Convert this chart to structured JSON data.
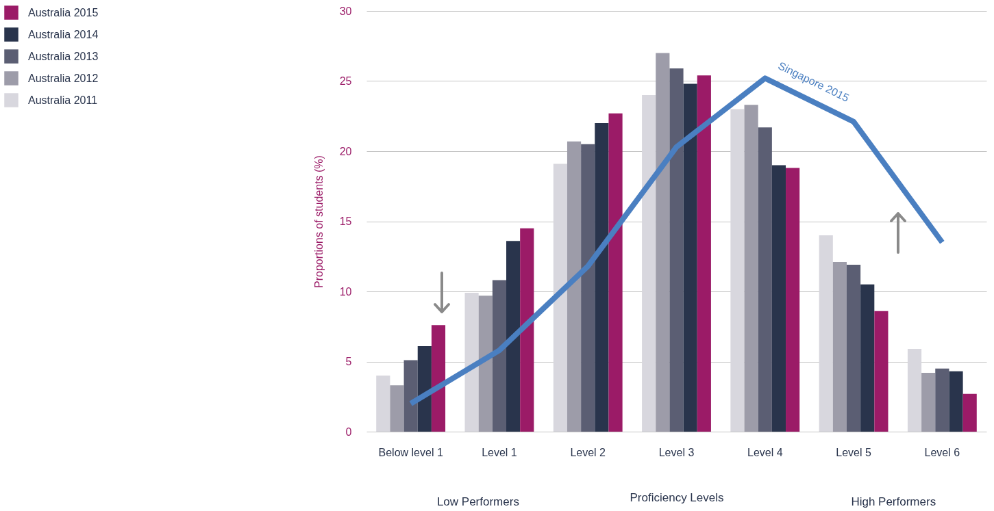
{
  "chart_data": {
    "type": "bar",
    "xlabel": "Proficiency Levels",
    "ylabel": "Proportions of students (%)",
    "categories": [
      "Below level 1",
      "Level 1",
      "Level 2",
      "Level 3",
      "Level 4",
      "Level 5",
      "Level 6"
    ],
    "series": [
      {
        "name": "Australia 2011",
        "color": "#d8d7de",
        "values": [
          4.0,
          9.9,
          19.1,
          24.0,
          23.0,
          14.0,
          5.9
        ]
      },
      {
        "name": "Australia 2012",
        "color": "#9d9ca9",
        "values": [
          3.3,
          9.7,
          20.7,
          27.0,
          23.3,
          12.1,
          4.2
        ]
      },
      {
        "name": "Australia 2013",
        "color": "#5b5e73",
        "values": [
          5.1,
          10.8,
          20.5,
          25.9,
          21.7,
          11.9,
          4.5
        ]
      },
      {
        "name": "Australia 2014",
        "color": "#29344c",
        "values": [
          6.1,
          13.6,
          22.0,
          24.8,
          19.0,
          10.5,
          4.3
        ]
      },
      {
        "name": "Australia 2015",
        "color": "#9b1b67",
        "values": [
          7.6,
          14.5,
          22.7,
          25.4,
          18.8,
          8.6,
          2.7
        ]
      },
      {
        "name": "Singapore 2015",
        "type": "line",
        "color": "#4a7fc1",
        "values": [
          2.0,
          5.8,
          11.8,
          20.3,
          25.2,
          22.1,
          13.5
        ]
      }
    ],
    "ylim": [
      0,
      30
    ],
    "yticks": [
      0,
      5,
      10,
      15,
      20,
      25,
      30
    ],
    "grid": "y",
    "legend": "top left",
    "annotations": [
      "Low Performers",
      "High Performers"
    ]
  }
}
